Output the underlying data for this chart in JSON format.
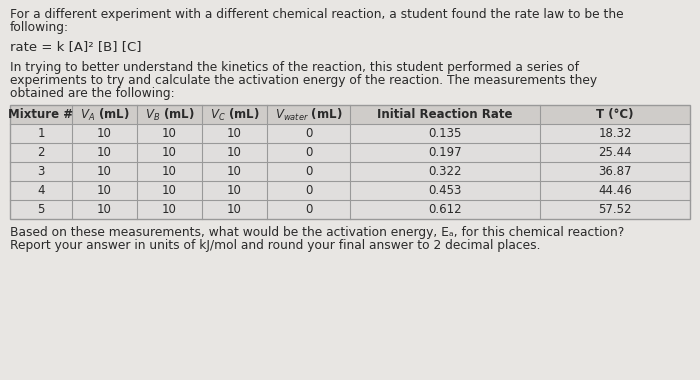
{
  "line1": "For a different experiment with a different chemical reaction, a student found the rate law to be the",
  "line2": "following:",
  "rate_law": "rate = k [A]² [B] [C]",
  "para2_l1": "In trying to better understand the kinetics of the reaction, this student performed a series of",
  "para2_l2": "experiments to try and calculate the activation energy of the reaction. The measurements they",
  "para2_l3": "obtained are the following:",
  "hdr": [
    "Mixture #",
    "$V_A$ (mL)",
    "$V_B$ (mL)",
    "$V_C$ (mL)",
    "$V_{water}$ (mL)",
    "Initial Reaction Rate",
    "T (°C)"
  ],
  "rows": [
    [
      "1",
      "10",
      "10",
      "10",
      "0",
      "0.135",
      "18.32"
    ],
    [
      "2",
      "10",
      "10",
      "10",
      "0",
      "0.197",
      "25.44"
    ],
    [
      "3",
      "10",
      "10",
      "10",
      "0",
      "0.322",
      "36.87"
    ],
    [
      "4",
      "10",
      "10",
      "10",
      "0",
      "0.453",
      "44.46"
    ],
    [
      "5",
      "10",
      "10",
      "10",
      "0",
      "0.612",
      "57.52"
    ]
  ],
  "footer1": "Based on these measurements, what would be the activation energy, Eₐ, for this chemical reaction?",
  "footer2": "Report your answer in units of kJ/mol and round your final answer to 2 decimal places.",
  "bg_color": "#e8e6e3",
  "table_bg": "#e0dedd",
  "header_bg": "#cfccc9",
  "border_color": "#999999",
  "text_color": "#2a2a2a",
  "fs_body": 8.8,
  "fs_rate": 9.5,
  "fs_table": 8.5
}
